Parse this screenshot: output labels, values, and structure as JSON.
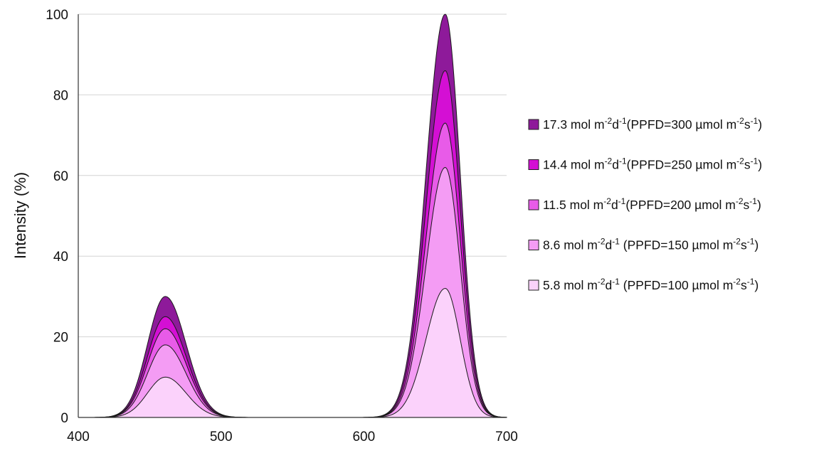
{
  "chart_data": {
    "type": "area",
    "xlabel": "",
    "ylabel": "Intensity (%)",
    "xlim": [
      400,
      700
    ],
    "ylim": [
      0,
      100
    ],
    "xticks": [
      400,
      500,
      600,
      700
    ],
    "yticks": [
      0,
      20,
      40,
      60,
      80,
      100
    ],
    "grid": "horizontal",
    "legend_position": "right",
    "peaks": {
      "blue_center": 461,
      "red_center": 657
    },
    "series": [
      {
        "name": "17.3 mol m-2d-1(PPFD=300 µmol m-2s-1)",
        "blue_peak": 30,
        "red_peak": 100,
        "color": "#8e1a9a",
        "legend": {
          "main": "17.3 mol m",
          "exp1": "-2",
          "mid": "d",
          "exp2": "-1",
          "tail": "(PPFD=300 µmol m",
          "exp3": "-2",
          "tail2": "s",
          "exp4": "-1",
          "close": ")"
        }
      },
      {
        "name": "14.4 mol m-2d-1(PPFD=250 µmol m-2s-1)",
        "blue_peak": 25,
        "red_peak": 86,
        "color": "#d40fd4",
        "legend": {
          "main": "14.4 mol m",
          "exp1": "-2",
          "mid": "d",
          "exp2": "-1",
          "tail": "(PPFD=250 µmol m",
          "exp3": "-2",
          "tail2": "s",
          "exp4": "-1",
          "close": ")"
        }
      },
      {
        "name": "11.5 mol m-2d-1(PPFD=200 µmol m-2s-1)",
        "blue_peak": 22,
        "red_peak": 73,
        "color": "#e85be8",
        "legend": {
          "main": "11.5 mol m",
          "exp1": "-2",
          "mid": "d",
          "exp2": "-1",
          "tail": "(PPFD=200 µmol m",
          "exp3": "-2",
          "tail2": "s",
          "exp4": "-1",
          "close": ")"
        }
      },
      {
        "name": "8.6 mol m-2d-1 (PPFD=150 µmol m-2s-1)",
        "blue_peak": 18,
        "red_peak": 62,
        "color": "#f49cf4",
        "legend": {
          "main": "8.6 mol m",
          "exp1": "-2",
          "mid": "d",
          "exp2": "-1",
          "tail": " (PPFD=150 µmol m",
          "exp3": "-2",
          "tail2": "s",
          "exp4": "-1",
          "close": ")"
        }
      },
      {
        "name": "5.8 mol m-2d-1 (PPFD=100 µmol m-2s-1)",
        "blue_peak": 10,
        "red_peak": 32,
        "color": "#fbd2fb",
        "legend": {
          "main": "5.8 mol m",
          "exp1": "-2",
          "mid": "d",
          "exp2": "-1",
          "tail": " (PPFD=100 µmol m",
          "exp3": "-2",
          "tail2": "s",
          "exp4": "-1",
          "close": ")"
        }
      }
    ]
  }
}
